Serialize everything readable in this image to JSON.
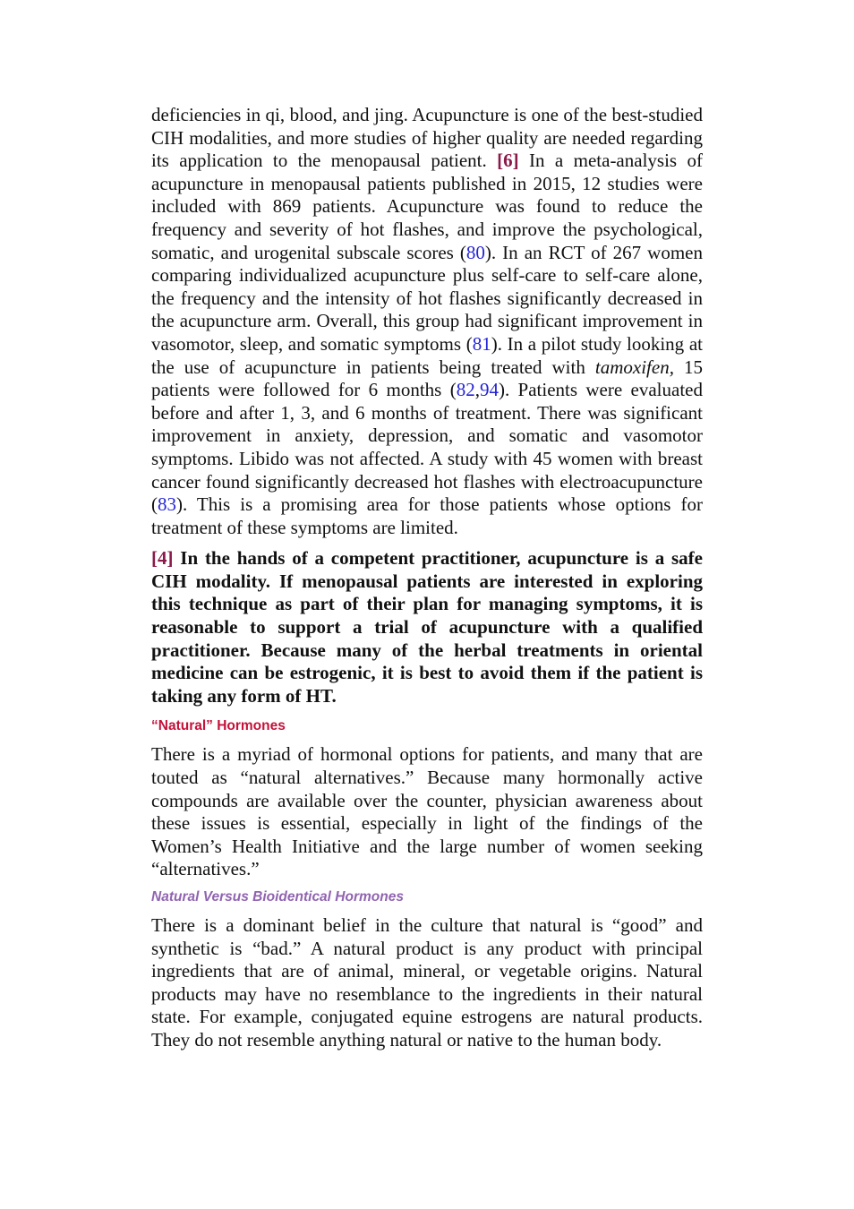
{
  "paragraphs": [
    [
      "deficiencies in qi, blood, and jing. Acupuncture is one of the best-studied CIH modalities, and more studies of higher quality are needed regarding its application to the menopausal patient. ",
      "[6]",
      " In a meta-analysis of acupuncture in menopausal patients published in 2015, 12 studies were included with 869 patients. Acupuncture was found to reduce the frequency and severity of hot flashes, and improve the psychological, somatic, and urogenital subscale scores (",
      "80",
      "). In an RCT of 267 women comparing individualized acupuncture plus self-care to self-care alone, the frequency and the intensity of hot flashes significantly decreased in the acupuncture arm. Overall, this group had significant improvement in vasomotor, sleep, and somatic symptoms (",
      "81",
      "). In a pilot study looking at the use of acupuncture in patients being treated with ",
      "tamoxifen,",
      " 15 patients were followed for 6 months (",
      "82",
      ",",
      "94",
      "). Patients were evaluated before and after 1, 3, and 6 months of treatment. There was significant improvement in anxiety, depression, and somatic and vasomotor symptoms. Libido was not affected. A study with 45 women with breast cancer found significantly decreased hot flashes with electroacupuncture (",
      "83",
      "). This is a promising area for those patients whose options for treatment of these symptoms are limited."
    ],
    [
      "[4]",
      " In the hands of a competent practitioner, acupuncture is a safe CIH modality. If menopausal patients are interested in exploring this technique as part of their plan for managing symptoms, it is reasonable to support a trial of acupuncture with a qualified practitioner. Because many of the herbal treatments in oriental medicine can be estrogenic, it is best to avoid them if the patient is taking any form of HT."
    ]
  ],
  "section": {
    "heading": "“Natural” Hormones",
    "text": "There is a myriad of hormonal options for patients, and many that are touted as “natural alternatives.” Because many hormonally active compounds are available over the counter, physician awareness about these issues is essential, especially in light of the findings of the Women’s Health Initiative and the large number of women seeking “alternatives.”"
  },
  "subsection": {
    "heading": "Natural Versus Bioidentical Hormones",
    "text": "There is a dominant belief in the culture that natural is “good” and synthetic is “bad.” A natural product is any product with principal ingredients that are of animal, mineral, or vegetable origins. Natural products may have no resemblance to the ingredients in their natural state. For example, conjugated equine estrogens are natural products. They do not resemble anything natural or native to the human body."
  }
}
